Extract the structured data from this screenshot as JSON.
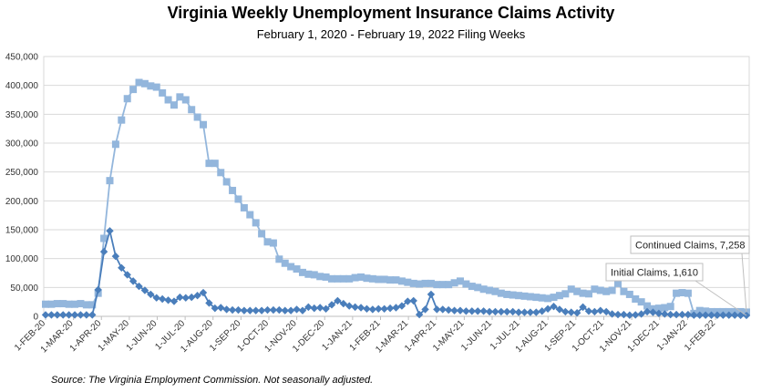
{
  "chart_data": {
    "type": "line",
    "title": "Virginia Weekly Unemployment Insurance Claims Activity",
    "subtitle": "February 1, 2020 - February 19, 2022 Filing Weeks",
    "source": "Source: The Virginia Employment Commission. Not seasonally adjusted.",
    "ylim": [
      0,
      450000
    ],
    "y_ticks": [
      "0",
      "50,000",
      "100,000",
      "150,000",
      "200,000",
      "250,000",
      "300,000",
      "350,000",
      "400,000",
      "450,000"
    ],
    "x_tick_labels": [
      "1-FEB-20",
      "1-MAR-20",
      "1-APR-20",
      "1-MAY-20",
      "1-JUN-20",
      "1-JUL-20",
      "1-AUG-20",
      "1-SEP-20",
      "1-OCT-20",
      "1-NOV-20",
      "1-DEC-20",
      "1-JAN-21",
      "1-FEB-21",
      "1-MAR-21",
      "1-APR-21",
      "1-MAY-21",
      "1-JUN-21",
      "1-JUL-21",
      "1-AUG-21",
      "1-SEP-21",
      "1-OCT-21",
      "1-NOV-21",
      "1-DEC-21",
      "1-JAN-22",
      "1-FEB-22"
    ],
    "grid": "horizontal",
    "series": [
      {
        "name": "Continued Claims",
        "color": "#93b6dc",
        "marker": "square",
        "callout": "Continued Claims, 7,258",
        "values": [
          21000,
          21000,
          22000,
          22000,
          21000,
          21000,
          22000,
          20000,
          20000,
          40000,
          135000,
          235000,
          298000,
          340000,
          377000,
          393000,
          405000,
          403000,
          399000,
          397000,
          387000,
          375000,
          366000,
          380000,
          375000,
          358000,
          345000,
          332000,
          265000,
          265000,
          249000,
          233000,
          218000,
          203000,
          188000,
          176000,
          162000,
          143000,
          129000,
          127000,
          99000,
          92000,
          86000,
          82000,
          76000,
          73000,
          72000,
          69000,
          68000,
          65000,
          65000,
          65000,
          65000,
          67000,
          68000,
          66000,
          65000,
          64000,
          64000,
          63000,
          63000,
          61000,
          59000,
          57000,
          56000,
          57000,
          57000,
          55000,
          55000,
          55000,
          58000,
          61000,
          56000,
          52000,
          50000,
          47000,
          45000,
          43000,
          40000,
          38000,
          37000,
          36000,
          35000,
          34000,
          33000,
          32000,
          31000,
          33000,
          36000,
          39000,
          47000,
          43000,
          40000,
          39000,
          47000,
          45000,
          43000,
          45000,
          57000,
          43000,
          38000,
          30000,
          25000,
          18000,
          13000,
          14000,
          15000,
          17000,
          40000,
          41000,
          40000,
          5000,
          10000,
          9000,
          8000,
          8000,
          8000,
          8000,
          8000,
          8000,
          7258
        ]
      },
      {
        "name": "Initial Claims",
        "color": "#4a7ebb",
        "marker": "diamond",
        "callout": "Initial Claims, 1,610",
        "values": [
          2500,
          2500,
          2500,
          2500,
          2500,
          2500,
          2500,
          2500,
          2500,
          46000,
          112000,
          148000,
          104000,
          84000,
          72000,
          61000,
          52000,
          45000,
          38000,
          32000,
          30000,
          28000,
          26000,
          33000,
          32000,
          33000,
          36000,
          41000,
          23000,
          14000,
          15000,
          12000,
          11000,
          11000,
          10000,
          10000,
          10000,
          10000,
          11000,
          11000,
          11000,
          10000,
          10000,
          12000,
          10000,
          16000,
          14000,
          15000,
          13000,
          20000,
          27000,
          22000,
          18000,
          16000,
          15000,
          13000,
          12000,
          13000,
          13000,
          14000,
          15000,
          18000,
          26000,
          27000,
          3000,
          12000,
          38000,
          12000,
          12000,
          11000,
          10000,
          10000,
          9000,
          9000,
          9000,
          9000,
          8000,
          8000,
          8000,
          8000,
          8000,
          7000,
          7000,
          7000,
          7000,
          9000,
          13000,
          17000,
          12000,
          8000,
          7000,
          6000,
          16000,
          9000,
          8000,
          10000,
          8000,
          4000,
          3000,
          3000,
          2000,
          2500,
          4000,
          8000,
          7000,
          5000,
          4000,
          3000,
          3000,
          3000,
          3000,
          2000,
          2000,
          2000,
          2000,
          2000,
          2000,
          2000,
          2000,
          1800,
          1610
        ]
      }
    ]
  }
}
